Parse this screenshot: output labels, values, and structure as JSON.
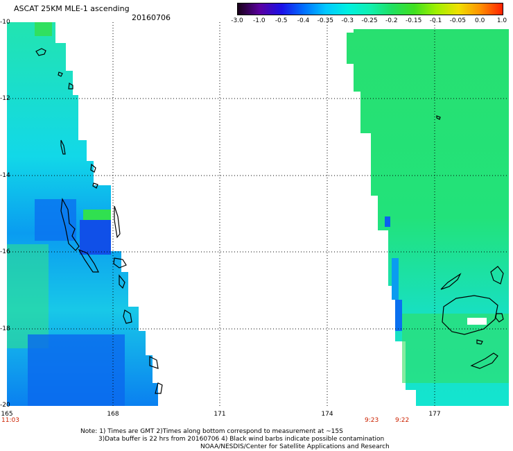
{
  "header": {
    "title": "ASCAT 25KM MLE-1 ascending",
    "date": "20160706"
  },
  "colorbar": {
    "ticks": [
      "-3.0",
      "-1.0",
      "-0.5",
      "-0.4",
      "-0.35",
      "-0.3",
      "-0.25",
      "-0.2",
      "-0.15",
      "-0.1",
      "-0.05",
      "0.0",
      "1.0"
    ],
    "colors": [
      "#180018",
      "#5a00a0",
      "#1a10e8",
      "#0070ff",
      "#00c8ff",
      "#00f0e0",
      "#10f0b0",
      "#20e060",
      "#40e020",
      "#a0f000",
      "#f0e000",
      "#ff9000",
      "#ff2000"
    ]
  },
  "map": {
    "lat_labels": [
      "-10",
      "-12",
      "-14",
      "-16",
      "-18",
      "-20"
    ],
    "lon_labels": [
      "165",
      "168",
      "171",
      "174",
      "177"
    ],
    "times": [
      "11:03",
      "9:23",
      "9:22"
    ]
  },
  "footer": {
    "line1": "Note: 1) Times are GMT 2)Times along bottom correspond to measurement at ~15S",
    "line2": "3)Data buffer is 22 hrs from 20160706 4) Black wind barbs indicate possible contamination",
    "line3": "NOAA/NESDIS/Center for Satellite Applications and Research"
  }
}
